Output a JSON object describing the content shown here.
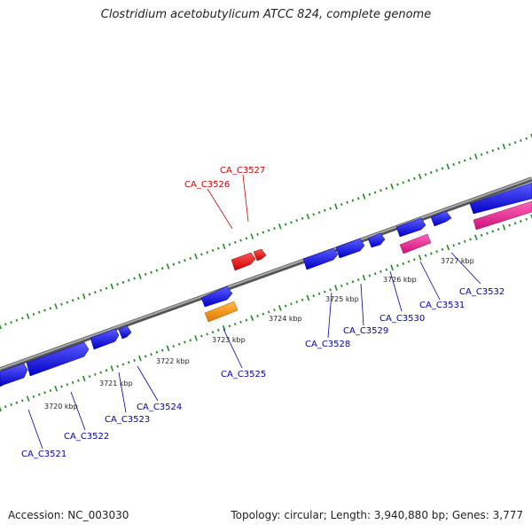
{
  "title": "Clostridium acetobutylicum ATCC 824, complete genome",
  "accession_text": "Accession: NC_003030",
  "summary_text": "Topology: circular; Length: 3,940,880 bp; Genes: 3,777",
  "colors": {
    "backbone": "#7f7f7f",
    "tick": "#228b22",
    "forward_gene": "#1a1aee",
    "hit_gene": "#ee1111",
    "orange_gene": "#ff9900",
    "pink_gene": "#ee2299",
    "label_blue": "#0000aa",
    "label_red": "#cc0000"
  },
  "ticks": [
    {
      "label": "3720 kbp"
    },
    {
      "label": "3721 kbp"
    },
    {
      "label": "3722 kbp"
    },
    {
      "label": "3723 kbp"
    },
    {
      "label": "3724 kbp"
    },
    {
      "label": "3725 kbp"
    },
    {
      "label": "3726 kbp"
    },
    {
      "label": "3727 kbp"
    }
  ],
  "genes": [
    {
      "name": "CA_C3521"
    },
    {
      "name": "CA_C3522"
    },
    {
      "name": "CA_C3523"
    },
    {
      "name": "CA_C3524"
    },
    {
      "name": "CA_C3525"
    },
    {
      "name": "CA_C3526"
    },
    {
      "name": "CA_C3527"
    },
    {
      "name": "CA_C3528"
    },
    {
      "name": "CA_C3529"
    },
    {
      "name": "CA_C3530"
    },
    {
      "name": "CA_C3531"
    },
    {
      "name": "CA_C3532"
    }
  ]
}
